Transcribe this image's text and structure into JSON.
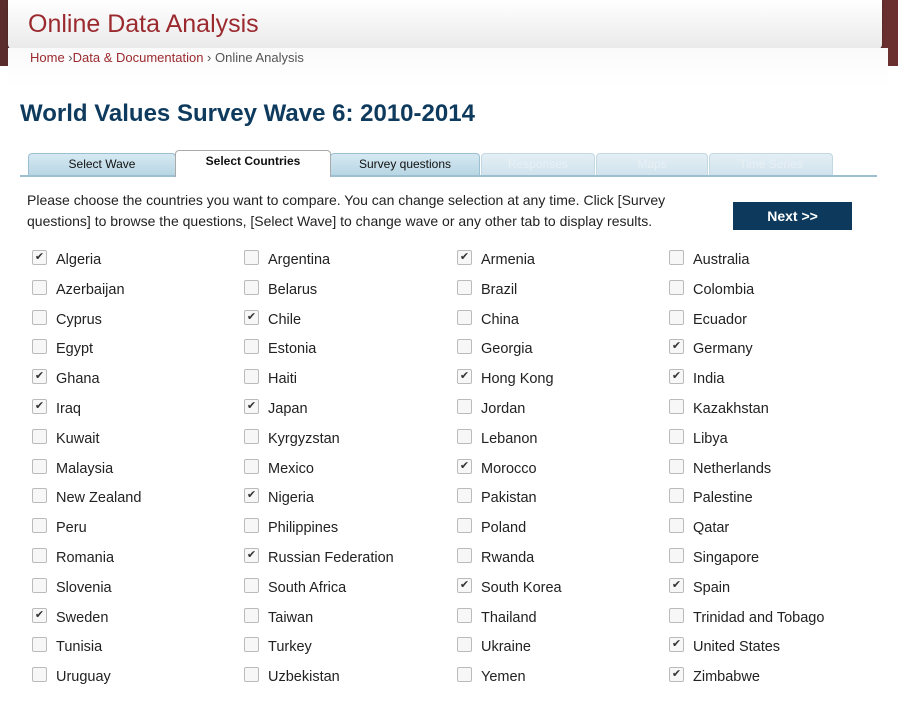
{
  "header": {
    "app_title": "Online Data Analysis"
  },
  "breadcrumb": {
    "home": "Home",
    "sep1": " ›",
    "data_docs": "Data & Documentation",
    "sep2": " › ",
    "current": "Online Analysis"
  },
  "page_title": "World Values Survey Wave 6: 2010-2014",
  "tabs": [
    {
      "label": "Select Wave",
      "state": "normal"
    },
    {
      "label": "Select Countries",
      "state": "active"
    },
    {
      "label": "Survey questions",
      "state": "normal"
    },
    {
      "label": "Responses",
      "state": "disabled"
    },
    {
      "label": "Maps",
      "state": "disabled"
    },
    {
      "label": "Time Series",
      "state": "disabled"
    }
  ],
  "instructions": "Please choose the countries you want to compare. You can change selection at any time. Click [Survey questions] to browse the questions, [Select Wave] to change wave or any other tab to display results.",
  "next_button": "Next >>",
  "checkbox_mark": "✔",
  "countries": [
    {
      "name": "Algeria",
      "checked": true
    },
    {
      "name": "Argentina",
      "checked": false
    },
    {
      "name": "Armenia",
      "checked": true
    },
    {
      "name": "Australia",
      "checked": false
    },
    {
      "name": "Azerbaijan",
      "checked": false
    },
    {
      "name": "Belarus",
      "checked": false
    },
    {
      "name": "Brazil",
      "checked": false
    },
    {
      "name": "Colombia",
      "checked": false
    },
    {
      "name": "Cyprus",
      "checked": false
    },
    {
      "name": "Chile",
      "checked": true
    },
    {
      "name": "China",
      "checked": false
    },
    {
      "name": "Ecuador",
      "checked": false
    },
    {
      "name": "Egypt",
      "checked": false
    },
    {
      "name": "Estonia",
      "checked": false
    },
    {
      "name": "Georgia",
      "checked": false
    },
    {
      "name": "Germany",
      "checked": true
    },
    {
      "name": "Ghana",
      "checked": true
    },
    {
      "name": "Haiti",
      "checked": false
    },
    {
      "name": "Hong Kong",
      "checked": true
    },
    {
      "name": "India",
      "checked": true
    },
    {
      "name": "Iraq",
      "checked": true
    },
    {
      "name": "Japan",
      "checked": true
    },
    {
      "name": "Jordan",
      "checked": false
    },
    {
      "name": "Kazakhstan",
      "checked": false
    },
    {
      "name": "Kuwait",
      "checked": false
    },
    {
      "name": "Kyrgyzstan",
      "checked": false
    },
    {
      "name": "Lebanon",
      "checked": false
    },
    {
      "name": "Libya",
      "checked": false
    },
    {
      "name": "Malaysia",
      "checked": false
    },
    {
      "name": "Mexico",
      "checked": false
    },
    {
      "name": "Morocco",
      "checked": true
    },
    {
      "name": "Netherlands",
      "checked": false
    },
    {
      "name": "New Zealand",
      "checked": false
    },
    {
      "name": "Nigeria",
      "checked": true
    },
    {
      "name": "Pakistan",
      "checked": false
    },
    {
      "name": "Palestine",
      "checked": false
    },
    {
      "name": "Peru",
      "checked": false
    },
    {
      "name": "Philippines",
      "checked": false
    },
    {
      "name": "Poland",
      "checked": false
    },
    {
      "name": "Qatar",
      "checked": false
    },
    {
      "name": "Romania",
      "checked": false
    },
    {
      "name": "Russian Federation",
      "checked": true
    },
    {
      "name": "Rwanda",
      "checked": false
    },
    {
      "name": "Singapore",
      "checked": false
    },
    {
      "name": "Slovenia",
      "checked": false
    },
    {
      "name": "South Africa",
      "checked": false
    },
    {
      "name": "South Korea",
      "checked": true
    },
    {
      "name": "Spain",
      "checked": true
    },
    {
      "name": "Sweden",
      "checked": true
    },
    {
      "name": "Taiwan",
      "checked": false
    },
    {
      "name": "Thailand",
      "checked": false
    },
    {
      "name": "Trinidad and Tobago",
      "checked": false
    },
    {
      "name": "Tunisia",
      "checked": false
    },
    {
      "name": "Turkey",
      "checked": false
    },
    {
      "name": "Ukraine",
      "checked": false
    },
    {
      "name": "United States",
      "checked": true
    },
    {
      "name": "Uruguay",
      "checked": false
    },
    {
      "name": "Uzbekistan",
      "checked": false
    },
    {
      "name": "Yemen",
      "checked": false
    },
    {
      "name": "Zimbabwe",
      "checked": true
    }
  ]
}
